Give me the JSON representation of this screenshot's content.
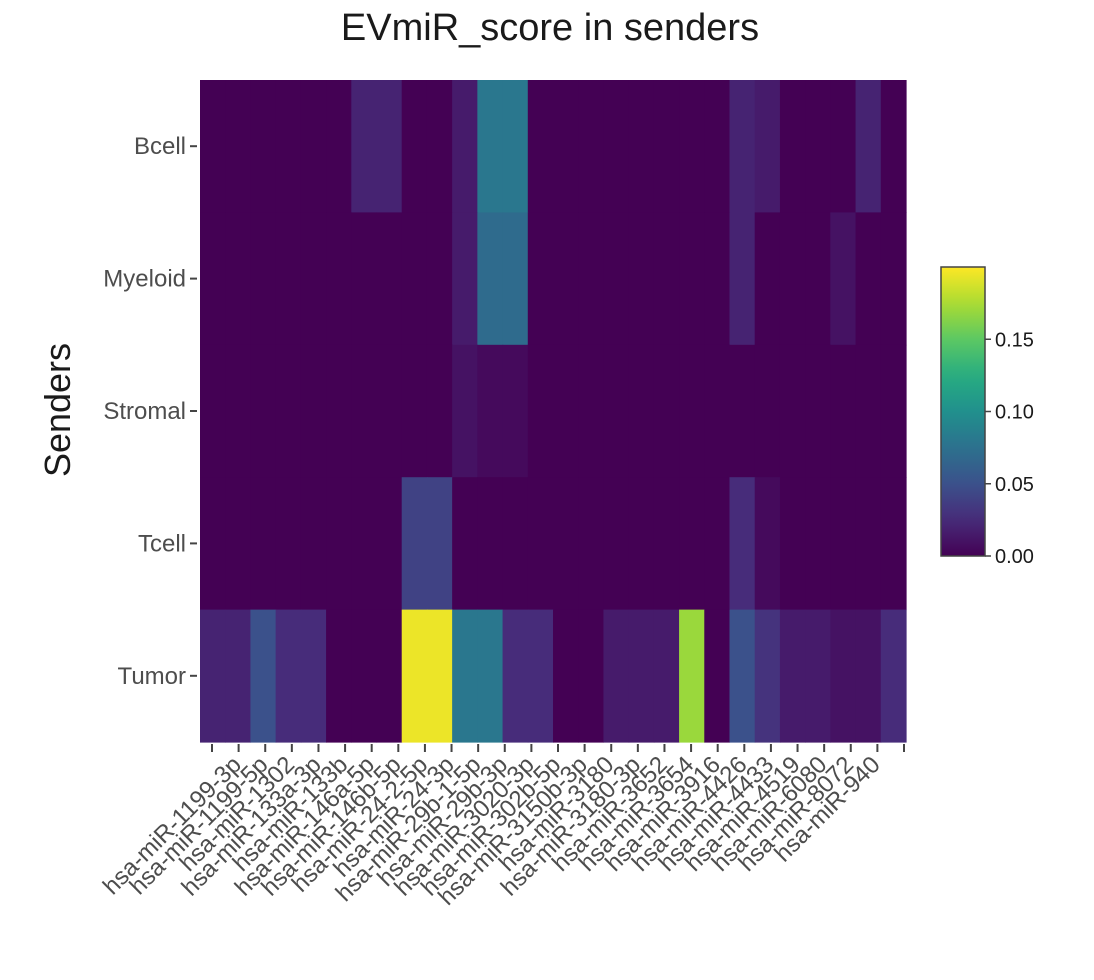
{
  "chart_data": {
    "type": "heatmap",
    "title": "EVmiR_score in senders",
    "xlabel": "",
    "ylabel": "Senders",
    "rows": [
      "Bcell",
      "Myeloid",
      "Stromal",
      "Tcell",
      "Tumor"
    ],
    "columns": [
      "hsa-miR-1199-3p",
      "hsa-miR-1199-5p",
      "hsa-miR-1302",
      "hsa-miR-133a-3p",
      "hsa-miR-133b",
      "hsa-miR-146a-5p",
      "hsa-miR-146b-5p",
      "hsa-miR-24-2-5p",
      "hsa-miR-24-3p",
      "hsa-miR-29b-1-5p",
      "hsa-miR-29b-3p",
      "hsa-miR-3020-3p",
      "hsa-miR-302b-5p",
      "hsa-miR-3150b-3p",
      "hsa-miR-3180",
      "hsa-miR-3180-3p",
      "hsa-miR-3652",
      "hsa-miR-3654",
      "hsa-miR-3916",
      "hsa-miR-4426",
      "hsa-miR-4433",
      "hsa-miR-4519",
      "hsa-miR-6080",
      "hsa-miR-8072",
      "hsa-miR-940"
    ],
    "values": [
      [
        0,
        0,
        0,
        0,
        0,
        0,
        0.02,
        0.02,
        0,
        0,
        0.015,
        0.08,
        0.08,
        0,
        0,
        0,
        0,
        0,
        0,
        0,
        0,
        0.02,
        0.015,
        0,
        0,
        0,
        0.02,
        0
      ],
      [
        0,
        0,
        0,
        0,
        0,
        0,
        0,
        0,
        0,
        0,
        0.015,
        0.07,
        0.07,
        0,
        0,
        0,
        0,
        0,
        0,
        0,
        0,
        0.02,
        0,
        0,
        0,
        0.01,
        0,
        0
      ],
      [
        0,
        0,
        0,
        0,
        0,
        0,
        0,
        0,
        0,
        0,
        0.01,
        0.005,
        0.005,
        0,
        0,
        0,
        0,
        0,
        0,
        0,
        0,
        0,
        0,
        0,
        0,
        0,
        0,
        0
      ],
      [
        0,
        0,
        0,
        0,
        0,
        0,
        0,
        0,
        0.04,
        0.04,
        0,
        0,
        0,
        0,
        0,
        0,
        0,
        0,
        0,
        0,
        0,
        0.025,
        0.005,
        0,
        0,
        0,
        0,
        0
      ],
      [
        0.02,
        0.02,
        0.05,
        0.025,
        0.025,
        0,
        0,
        0,
        0.195,
        0.195,
        0.08,
        0.08,
        0.025,
        0.025,
        0,
        0,
        0.015,
        0.015,
        0.015,
        0.17,
        0,
        0.05,
        0.03,
        0.015,
        0.015,
        0.01,
        0.01,
        0.025
      ]
    ],
    "column_blocks": 28,
    "zlim": [
      0,
      0.2
    ],
    "colorscale": "viridis",
    "colorbar_ticks": [
      "0.00",
      "0.05",
      "0.10",
      "0.15"
    ],
    "colorbar_tick_values": [
      0,
      0.05,
      0.1,
      0.15
    ],
    "colorbar_position": "right",
    "grid": false
  }
}
